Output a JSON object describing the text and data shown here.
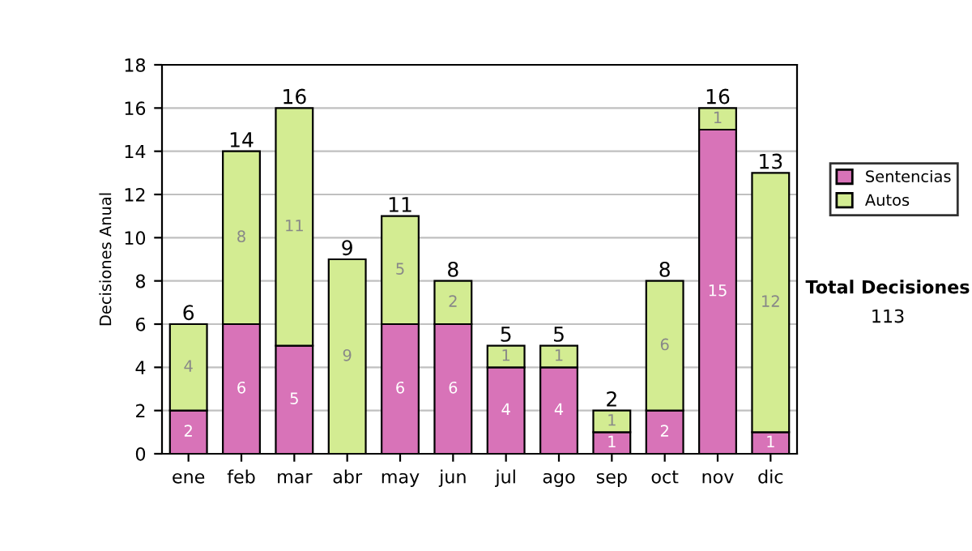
{
  "chart_data": {
    "type": "bar",
    "ylabel": "Decisiones Anual",
    "categories": [
      "ene",
      "feb",
      "mar",
      "abr",
      "may",
      "jun",
      "jul",
      "ago",
      "sep",
      "oct",
      "nov",
      "dic"
    ],
    "stacked": true,
    "ylim": [
      0,
      18
    ],
    "yticks": [
      0,
      2,
      4,
      6,
      8,
      10,
      12,
      14,
      16,
      18
    ],
    "grid": "y",
    "legend": "right",
    "series": [
      {
        "name": "Sentencias",
        "color": "#d873b8",
        "values": [
          2,
          6,
          5,
          0,
          6,
          6,
          4,
          4,
          1,
          2,
          15,
          1
        ],
        "value_labels": [
          "2",
          "6",
          "5",
          null,
          "6",
          "6",
          "4",
          "4",
          "1",
          "2",
          "15",
          "1"
        ]
      },
      {
        "name": "Autos",
        "color": "#d3ec92",
        "values": [
          4,
          8,
          11,
          9,
          5,
          2,
          1,
          1,
          1,
          6,
          1,
          12
        ],
        "value_labels": [
          "4",
          "8",
          "11",
          "9",
          "5",
          "2",
          "1",
          "1",
          "1",
          "6",
          "1",
          "12"
        ]
      }
    ],
    "totals": [
      "6",
      "14",
      "16",
      "9",
      "11",
      "8",
      "5",
      "5",
      "2",
      "8",
      "16",
      "13"
    ],
    "annotations": [
      "Total Decisiones",
      "113"
    ]
  }
}
